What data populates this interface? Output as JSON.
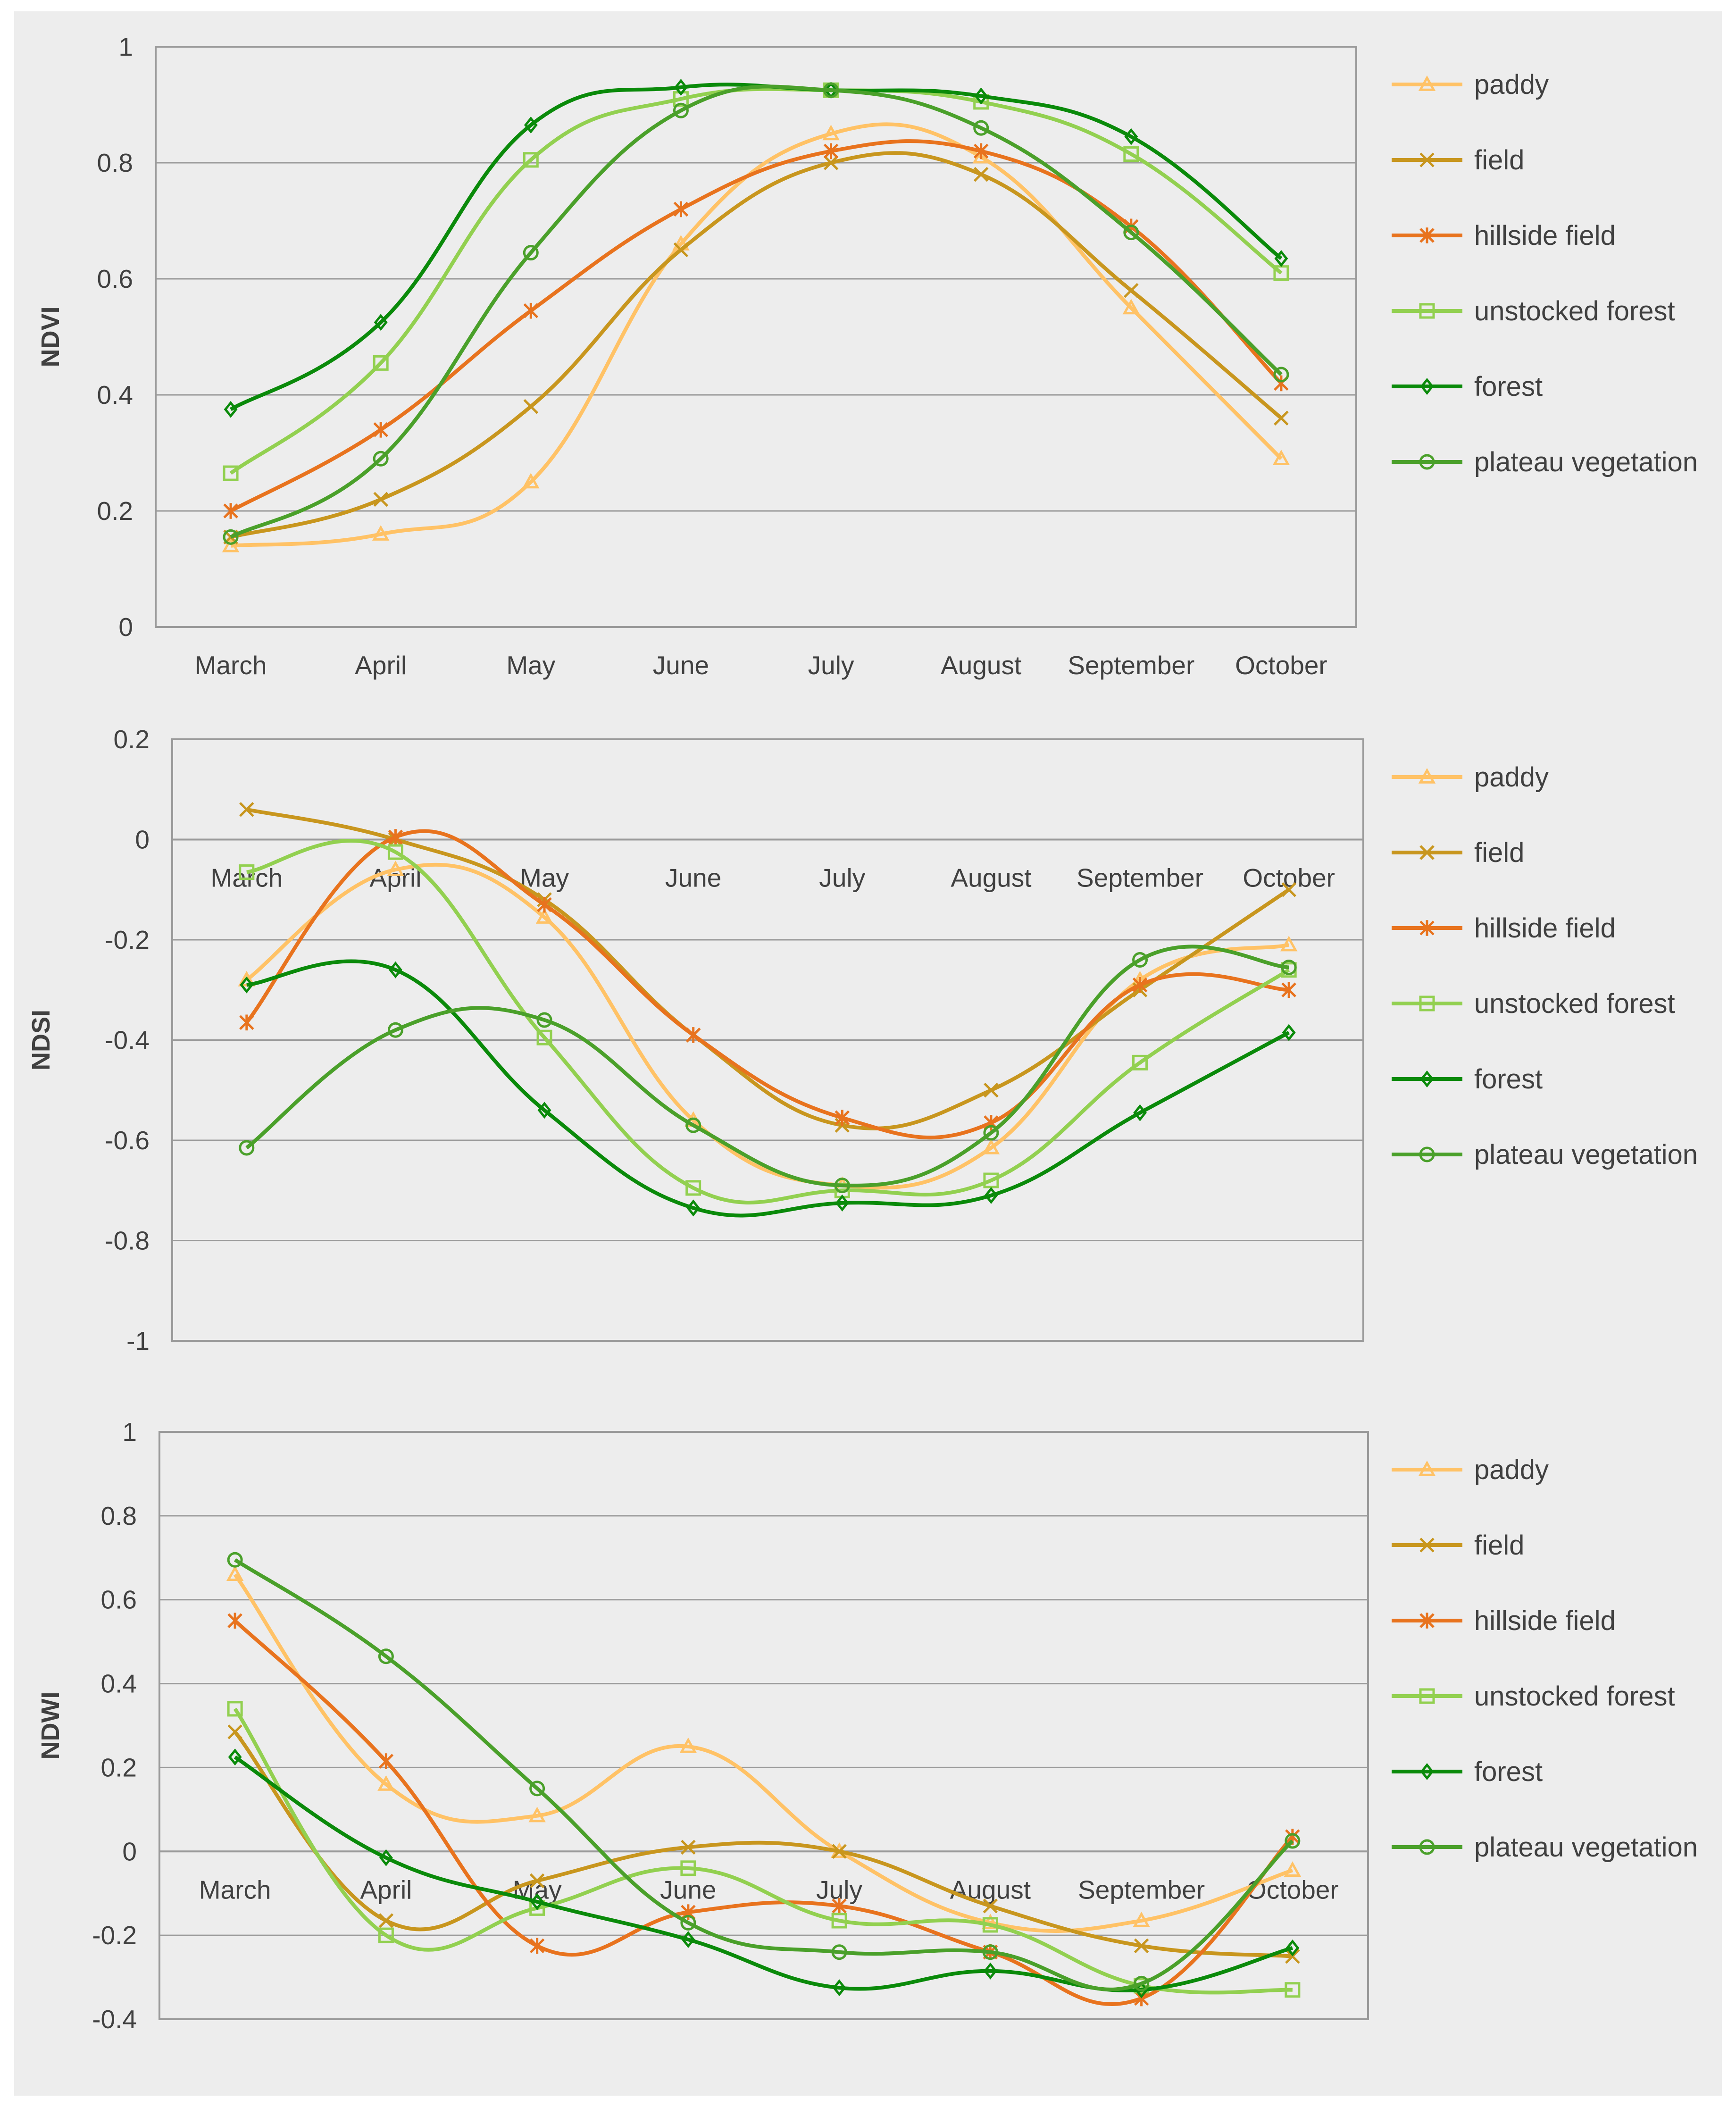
{
  "chart_data": [
    {
      "type": "line",
      "ylabel": "NDVI",
      "ylim": [
        0,
        1
      ],
      "yticks": [
        "0",
        "0.2",
        "0.4",
        "0.6",
        "0.8",
        "1"
      ],
      "categories": [
        "March",
        "April",
        "May",
        "June",
        "July",
        "August",
        "September",
        "October"
      ],
      "legend_position": "right",
      "grid": true,
      "series": [
        {
          "name": "paddy",
          "color": "#ffc266",
          "marker": "triangle",
          "values": [
            0.14,
            0.16,
            0.25,
            0.66,
            0.85,
            0.81,
            0.55,
            0.29
          ]
        },
        {
          "name": "field",
          "color": "#c8961e",
          "marker": "x",
          "values": [
            0.155,
            0.22,
            0.38,
            0.65,
            0.8,
            0.78,
            0.58,
            0.36
          ]
        },
        {
          "name": "hillside field",
          "color": "#e8731e",
          "marker": "star",
          "values": [
            0.2,
            0.34,
            0.545,
            0.72,
            0.82,
            0.82,
            0.69,
            0.42
          ]
        },
        {
          "name": "unstocked forest",
          "color": "#92d050",
          "marker": "square",
          "values": [
            0.265,
            0.455,
            0.805,
            0.91,
            0.925,
            0.905,
            0.815,
            0.61
          ]
        },
        {
          "name": "forest",
          "color": "#0a8a0a",
          "marker": "diamond",
          "values": [
            0.375,
            0.525,
            0.865,
            0.93,
            0.925,
            0.915,
            0.845,
            0.635
          ]
        },
        {
          "name": "plateau vegetation",
          "color": "#4aa02a",
          "marker": "circle",
          "values": [
            0.155,
            0.29,
            0.645,
            0.89,
            0.925,
            0.86,
            0.68,
            0.435
          ]
        }
      ]
    },
    {
      "type": "line",
      "ylabel": "NDSI",
      "ylim": [
        -1,
        0.2
      ],
      "yticks": [
        "-1",
        "-0.8",
        "-0.6",
        "-0.4",
        "-0.2",
        "0",
        "0.2"
      ],
      "categories": [
        "March",
        "April",
        "May",
        "June",
        "July",
        "August",
        "September",
        "October"
      ],
      "legend_position": "right",
      "grid": true,
      "series": [
        {
          "name": "paddy",
          "color": "#ffc266",
          "marker": "triangle",
          "values": [
            -0.28,
            -0.06,
            -0.155,
            -0.56,
            -0.69,
            -0.615,
            -0.28,
            -0.21
          ]
        },
        {
          "name": "field",
          "color": "#c8961e",
          "marker": "x",
          "values": [
            0.06,
            0.0,
            -0.12,
            -0.39,
            -0.57,
            -0.5,
            -0.3,
            -0.1
          ]
        },
        {
          "name": "hillside field",
          "color": "#e8731e",
          "marker": "star",
          "values": [
            -0.365,
            0.005,
            -0.13,
            -0.39,
            -0.555,
            -0.565,
            -0.29,
            -0.3
          ]
        },
        {
          "name": "unstocked forest",
          "color": "#92d050",
          "marker": "square",
          "values": [
            -0.065,
            -0.025,
            -0.395,
            -0.695,
            -0.7,
            -0.68,
            -0.445,
            -0.26
          ]
        },
        {
          "name": "forest",
          "color": "#0a8a0a",
          "marker": "diamond",
          "values": [
            -0.29,
            -0.26,
            -0.54,
            -0.735,
            -0.725,
            -0.71,
            -0.545,
            -0.385
          ]
        },
        {
          "name": "plateau vegetation",
          "color": "#4aa02a",
          "marker": "circle",
          "values": [
            -0.615,
            -0.38,
            -0.36,
            -0.57,
            -0.69,
            -0.585,
            -0.24,
            -0.255
          ]
        }
      ]
    },
    {
      "type": "line",
      "ylabel": "NDWI",
      "ylim": [
        -0.4,
        1
      ],
      "yticks": [
        "-0.4",
        "-0.2",
        "0",
        "0.2",
        "0.4",
        "0.6",
        "0.8",
        "1"
      ],
      "categories": [
        "March",
        "April",
        "May",
        "June",
        "July",
        "August",
        "September",
        "October"
      ],
      "legend_position": "right",
      "grid": true,
      "series": [
        {
          "name": "paddy",
          "color": "#ffc266",
          "marker": "triangle",
          "values": [
            0.66,
            0.16,
            0.085,
            0.25,
            0.0,
            -0.17,
            -0.165,
            -0.045
          ]
        },
        {
          "name": "field",
          "color": "#c8961e",
          "marker": "x",
          "values": [
            0.285,
            -0.165,
            -0.07,
            0.01,
            0.0,
            -0.13,
            -0.225,
            -0.25
          ]
        },
        {
          "name": "hillside field",
          "color": "#e8731e",
          "marker": "star",
          "values": [
            0.55,
            0.215,
            -0.225,
            -0.145,
            -0.13,
            -0.24,
            -0.35,
            0.035
          ]
        },
        {
          "name": "unstocked forest",
          "color": "#92d050",
          "marker": "square",
          "values": [
            0.34,
            -0.2,
            -0.135,
            -0.04,
            -0.165,
            -0.175,
            -0.32,
            -0.33
          ]
        },
        {
          "name": "forest",
          "color": "#0a8a0a",
          "marker": "diamond",
          "values": [
            0.225,
            -0.015,
            -0.12,
            -0.21,
            -0.325,
            -0.285,
            -0.33,
            -0.23
          ]
        },
        {
          "name": "plateau vegetation",
          "color": "#4aa02a",
          "marker": "circle",
          "values": [
            0.695,
            0.465,
            0.15,
            -0.17,
            -0.24,
            -0.24,
            -0.315,
            0.025
          ]
        }
      ]
    }
  ]
}
